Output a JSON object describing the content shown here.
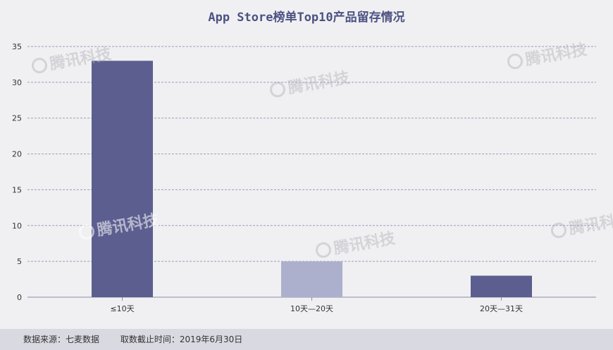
{
  "chart_data": {
    "type": "bar",
    "title": "App Store榜单Top10产品留存情况",
    "categories": [
      "≤10天",
      "10天—20天",
      "20天—31天"
    ],
    "values": [
      33,
      5,
      3
    ],
    "ylim": [
      0,
      35
    ],
    "yticks": [
      0,
      5,
      10,
      15,
      20,
      25,
      30,
      35
    ],
    "grid": true,
    "bar_colors": [
      "#5b5e8e",
      "#adb0cc",
      "#5b5e8e"
    ],
    "xlabel": "",
    "ylabel": ""
  },
  "watermark_text": "腾讯科技",
  "footer": {
    "source": "数据来源：七麦数据",
    "date": "取数截止时间：2019年6月30日"
  }
}
